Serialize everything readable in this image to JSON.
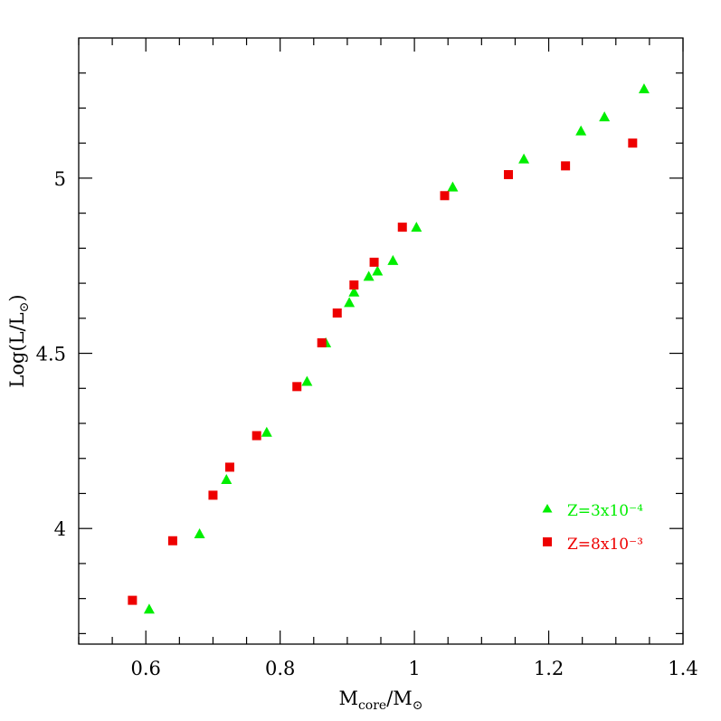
{
  "chart_data": {
    "type": "scatter",
    "title": "",
    "xlabel": {
      "main": "M",
      "sub1": "core",
      "slash": "/M",
      "sub2": "⊙"
    },
    "ylabel": {
      "main": "Log(L/L",
      "sub": "⊙",
      "close": ")"
    },
    "xlim": [
      0.5,
      1.4
    ],
    "ylim": [
      3.67,
      5.4
    ],
    "x_major_ticks": [
      0.6,
      0.8,
      1.0,
      1.2,
      1.4
    ],
    "x_tick_labels": [
      "0.6",
      "0.8",
      "1",
      "1.2",
      "1.4"
    ],
    "x_minor_ticks": [
      0.5,
      0.55,
      0.65,
      0.7,
      0.75,
      0.85,
      0.9,
      0.95,
      1.05,
      1.1,
      1.15,
      1.25,
      1.3,
      1.35
    ],
    "y_major_ticks": [
      4.0,
      4.5,
      5.0
    ],
    "y_tick_labels": [
      "4",
      "4.5",
      "5"
    ],
    "y_minor_ticks": [
      3.7,
      3.8,
      3.9,
      4.1,
      4.2,
      4.3,
      4.4,
      4.6,
      4.7,
      4.8,
      4.9,
      5.1,
      5.2,
      5.3
    ],
    "grid": false,
    "legend_position": "bottom-right",
    "series": [
      {
        "name": "Z=3x10⁻⁴",
        "color": "#00ee00",
        "marker": "triangle",
        "x": [
          0.605,
          0.68,
          0.72,
          0.78,
          0.84,
          0.868,
          0.903,
          0.91,
          0.932,
          0.945,
          0.968,
          1.003,
          1.057,
          1.163,
          1.248,
          1.283,
          1.342
        ],
        "y": [
          3.77,
          3.985,
          4.14,
          4.275,
          4.42,
          4.53,
          4.645,
          4.675,
          4.72,
          4.735,
          4.765,
          4.86,
          4.975,
          5.055,
          5.135,
          5.175,
          5.255
        ]
      },
      {
        "name": "Z=8x10⁻³",
        "color": "#ee0000",
        "marker": "square",
        "x": [
          0.58,
          0.64,
          0.7,
          0.725,
          0.765,
          0.825,
          0.862,
          0.885,
          0.91,
          0.94,
          0.982,
          1.045,
          1.14,
          1.225,
          1.325
        ],
        "y": [
          3.795,
          3.965,
          4.095,
          4.175,
          4.265,
          4.405,
          4.53,
          4.615,
          4.695,
          4.76,
          4.86,
          4.95,
          5.01,
          5.035,
          5.1
        ]
      }
    ]
  }
}
